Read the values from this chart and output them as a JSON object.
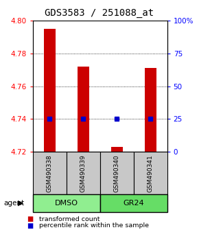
{
  "title": "GDS3583 / 251088_at",
  "samples": [
    "GSM490338",
    "GSM490339",
    "GSM490340",
    "GSM490341"
  ],
  "red_values": [
    4.795,
    4.772,
    4.723,
    4.771
  ],
  "blue_values": [
    4.74,
    4.74,
    4.74,
    4.74
  ],
  "y_min": 4.72,
  "y_max": 4.8,
  "y_ticks_left": [
    4.72,
    4.74,
    4.76,
    4.78,
    4.8
  ],
  "y_ticks_right": [
    0,
    25,
    50,
    75,
    100
  ],
  "y_ticks_right_pos": [
    4.72,
    4.74,
    4.76,
    4.78,
    4.8
  ],
  "groups": [
    {
      "label": "DMSO",
      "samples": [
        0,
        1
      ],
      "color": "#90EE90"
    },
    {
      "label": "GR24",
      "samples": [
        2,
        3
      ],
      "color": "#66DD66"
    }
  ],
  "bar_color": "#CC0000",
  "dot_color": "#0000CC",
  "bar_width": 0.35,
  "sample_box_color": "#C8C8C8",
  "legend_red": "transformed count",
  "legend_blue": "percentile rank within the sample",
  "title_fontsize": 10,
  "tick_fontsize": 7.5,
  "label_fontsize": 8
}
